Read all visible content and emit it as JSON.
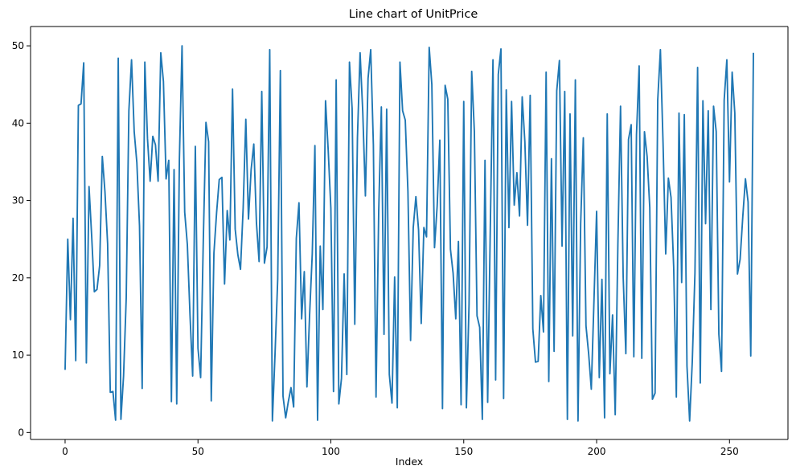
{
  "chart_data": {
    "type": "line",
    "title": "Line chart of UnitPrice",
    "xlabel": "Index",
    "ylabel": "",
    "xlim": [
      -13,
      272
    ],
    "ylim": [
      -0.9,
      52.5
    ],
    "xticks": [
      0,
      50,
      100,
      150,
      200,
      250
    ],
    "yticks": [
      0,
      10,
      20,
      30,
      40,
      50
    ],
    "grid": false,
    "legend": "none",
    "series": [
      {
        "color": "#1f77b4",
        "x_start": 0,
        "values": [
          8.1,
          25.0,
          14.6,
          27.7,
          9.3,
          42.3,
          42.5,
          47.8,
          9.0,
          31.8,
          25.4,
          18.2,
          18.5,
          21.6,
          35.7,
          31.1,
          24.4,
          5.2,
          5.3,
          1.6,
          48.4,
          1.7,
          7.3,
          17.4,
          41.6,
          48.2,
          38.9,
          34.9,
          26.7,
          5.7,
          47.9,
          38.0,
          32.5,
          38.3,
          37.2,
          32.5,
          49.1,
          45.4,
          32.8,
          35.2,
          4.0,
          34.0,
          3.7,
          35.2,
          50.0,
          28.5,
          24.3,
          15.2,
          7.3,
          37.0,
          10.9,
          7.1,
          24.8,
          40.1,
          37.6,
          4.1,
          23.2,
          28.4,
          32.7,
          33.0,
          19.2,
          28.7,
          24.9,
          44.4,
          26.3,
          23.0,
          21.1,
          29.0,
          40.5,
          27.6,
          34.0,
          37.3,
          27.1,
          22.1,
          44.1,
          21.9,
          24.0,
          49.5,
          1.5,
          10.2,
          19.8,
          46.8,
          4.7,
          1.9,
          4.0,
          5.8,
          3.3,
          25.1,
          29.7,
          14.7,
          20.8,
          5.9,
          15.2,
          23.1,
          37.1,
          1.6,
          24.1,
          15.9,
          42.9,
          36.5,
          29.0,
          5.3,
          45.6,
          3.7,
          7.0,
          20.5,
          7.5,
          47.9,
          41.9,
          14.0,
          38.1,
          49.1,
          41.5,
          30.6,
          45.8,
          49.5,
          37.2,
          4.6,
          28.5,
          42.1,
          12.7,
          41.8,
          7.5,
          3.8,
          20.1,
          3.2,
          47.9,
          41.6,
          40.4,
          31.2,
          11.9,
          26.5,
          30.5,
          26.2,
          14.1,
          26.5,
          25.3,
          49.8,
          45.0,
          23.9,
          29.3,
          37.8,
          3.1,
          44.9,
          43.1,
          23.7,
          20.6,
          14.7,
          24.7,
          3.6,
          42.8,
          3.2,
          16.6,
          46.7,
          38.9,
          15.1,
          13.6,
          1.7,
          35.2,
          3.9,
          26.5,
          48.2,
          6.8,
          46.3,
          49.6,
          4.4,
          44.3,
          26.5,
          42.8,
          29.4,
          33.6,
          28.0,
          43.4,
          37.6,
          26.8,
          43.6,
          13.4,
          9.1,
          9.2,
          17.7,
          13.0,
          46.6,
          6.6,
          35.4,
          10.5,
          44.2,
          48.1,
          24.1,
          44.1,
          1.7,
          41.2,
          12.5,
          45.6,
          1.5,
          27.0,
          38.1,
          13.8,
          10.2,
          5.6,
          17.0,
          28.6,
          7.1,
          19.8,
          1.9,
          41.2,
          7.6,
          15.2,
          2.3,
          24.3,
          42.2,
          20.1,
          10.2,
          37.9,
          39.8,
          9.8,
          38.5,
          47.4,
          9.6,
          38.9,
          35.7,
          29.1,
          4.3,
          5.1,
          43.0,
          49.5,
          37.4,
          23.1,
          32.9,
          30.4,
          21.4,
          4.6,
          41.3,
          19.4,
          41.1,
          8.6,
          1.5,
          9.2,
          20.6,
          47.2,
          6.4,
          42.9,
          27.0,
          41.6,
          15.9,
          42.2,
          38.9,
          12.7,
          7.9,
          43.0,
          48.2,
          32.4,
          46.6,
          41.3,
          20.5,
          22.4,
          27.9,
          32.8,
          29.8,
          9.9,
          49.1
        ]
      }
    ]
  }
}
